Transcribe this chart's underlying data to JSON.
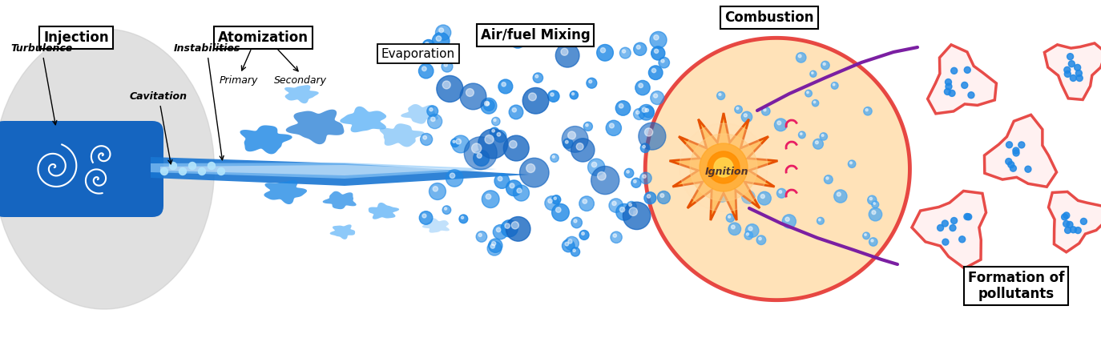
{
  "labels": {
    "injection": "Injection",
    "atomization": "Atomization",
    "primary": "Primary",
    "secondary": "Secondary",
    "air_fuel": "Air/fuel Mixing",
    "evaporation": "Evaporation",
    "ignition": "Ignition",
    "combustion": "Combustion",
    "formation": "Formation of\npollutants",
    "turbulence": "Turbulence",
    "cavitation": "Cavitation",
    "instabilities": "Instabilities"
  },
  "colors": {
    "blue_dark": "#1565C0",
    "blue_medium": "#1E88E5",
    "blue_light": "#64B5F6",
    "orange_flame": "#E65100",
    "combustion_fill": "#FFE0B2",
    "red_outline": "#E53935",
    "purple": "#6A1B9A",
    "white": "#FFFFFF"
  }
}
